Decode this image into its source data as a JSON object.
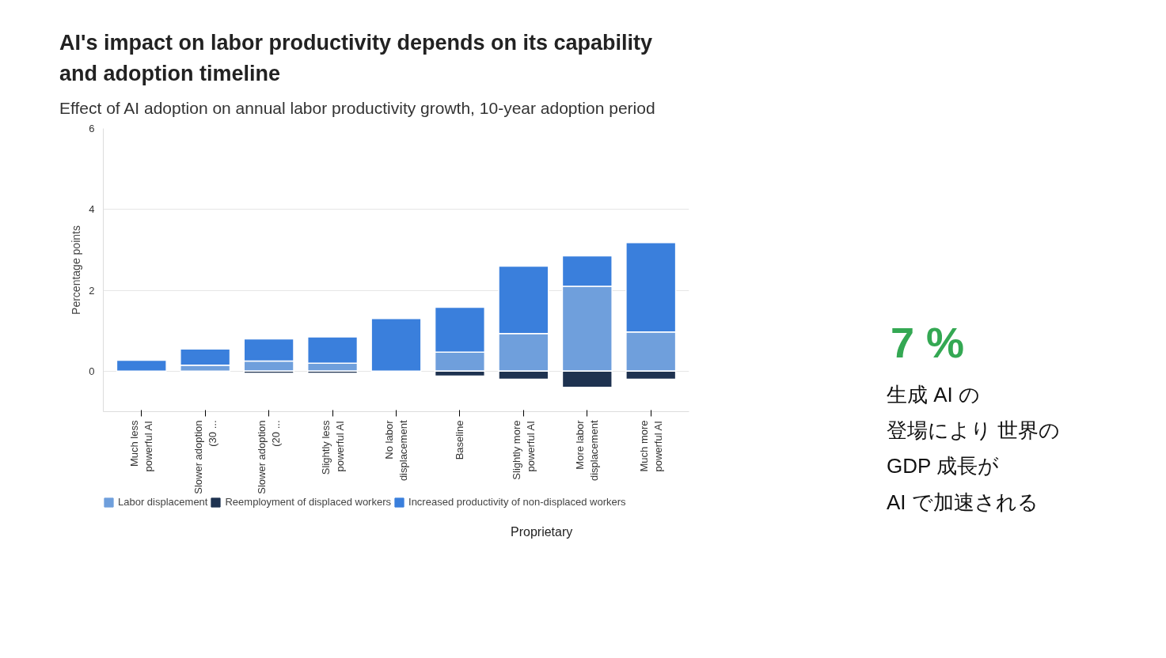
{
  "chart_data": {
    "type": "bar",
    "stacked": true,
    "title": "AI's impact on labor productivity depends on its capability and adoption timeline",
    "subtitle": "Effect of AI adoption on annual labor productivity growth, 10-year adoption period",
    "ylabel": "Percentage points",
    "categories": [
      "Much less powerful AI",
      "Slower adoption (30 ...",
      "Slower adoption (20 ...",
      "Slightly less powerful AI",
      "No labor displacement",
      "Baseline",
      "Slightly more powerful AI",
      "More labor displacement",
      "Much more powerful AI"
    ],
    "series": [
      {
        "name": "Labor displacement",
        "color": "#6f9fdc",
        "values": [
          null,
          0.15,
          0.25,
          0.2,
          0,
          0.47,
          0.93,
          2.1,
          0.97
        ]
      },
      {
        "name": "Reemployment of displaced workers",
        "color": "#1e3250",
        "values": [
          0,
          null,
          -0.05,
          -0.05,
          0,
          -0.12,
          -0.2,
          -0.4,
          -0.2
        ]
      },
      {
        "name": "Increased productivity of non-displaced workers",
        "color": "#3a7fdc",
        "values": [
          0.27,
          0.4,
          0.55,
          0.65,
          1.3,
          1.11,
          1.67,
          0.75,
          2.21
        ]
      }
    ],
    "ylim": [
      -1,
      6
    ],
    "yticks": [
      0,
      2,
      4,
      6
    ],
    "grid": "y",
    "legend": "bottom",
    "annotations": [
      "7 %",
      "生成 AI の",
      "登場により 世界の",
      "GDP 成長が",
      "AI で加速される",
      "Proprietary"
    ]
  }
}
